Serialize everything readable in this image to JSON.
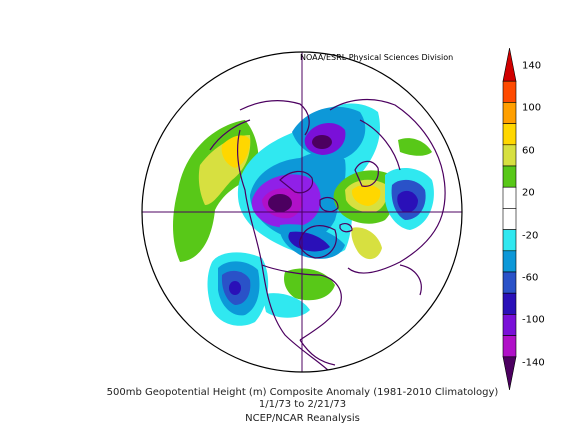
{
  "credit": "NOAA/ESRL Physical Sciences Division",
  "caption": {
    "line1": "500mb Geopotential Height (m) Composite Anomaly (1981-2010 Climatology)",
    "line2": "1/1/73  to 2/21/73",
    "line3": "NCEP/NCAR Reanalysis"
  },
  "colorbar": {
    "ticks": [
      "140",
      "100",
      "60",
      "20",
      "-20",
      "-60",
      "-100",
      "-140"
    ],
    "colors": [
      "#d00000",
      "#ff4a00",
      "#ff9f00",
      "#ffd700",
      "#d7e040",
      "#58c818",
      "#ffffff",
      "#ffffff",
      "#30e8f0",
      "#0d98d8",
      "#2a52c8",
      "#2a10b8",
      "#7a10d8",
      "#b010c8",
      "#4c0060"
    ]
  },
  "map": {
    "projection": "north polar stereographic",
    "anomaly_colors": {
      "deep_purple": "#4c0060",
      "purple": "#7a10d8",
      "violet": "#9020e8",
      "blue": "#2a10b8",
      "mid_blue": "#2a52c8",
      "light_blue": "#0d98d8",
      "cyan": "#30e8f0",
      "green": "#58c818",
      "lime": "#d7e040",
      "yellow": "#ffd700"
    }
  }
}
